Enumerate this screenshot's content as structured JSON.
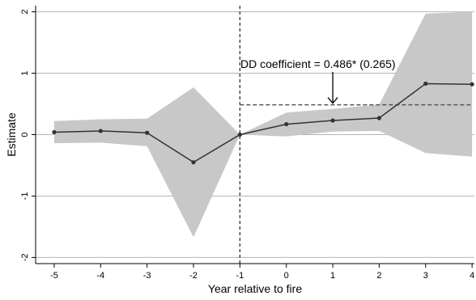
{
  "chart_data": {
    "type": "line",
    "title": "",
    "xlabel": "Year relative to fire",
    "ylabel": "Estimate",
    "xlim": [
      -5.4,
      4.05
    ],
    "ylim": [
      -2.1,
      2.1
    ],
    "x_ticks": [
      -5,
      -4,
      -3,
      -2,
      -1,
      0,
      1,
      2,
      3,
      4
    ],
    "y_ticks": [
      -2,
      -1,
      0,
      1,
      2
    ],
    "grid": "horizontal",
    "series": [
      {
        "x": [
          -5,
          -4,
          -3,
          -2,
          -1,
          0,
          1,
          2,
          3,
          4
        ],
        "values": [
          0.04,
          0.06,
          0.03,
          -0.45,
          0.0,
          0.17,
          0.23,
          0.27,
          0.83,
          0.82
        ],
        "ci_lower": [
          -0.14,
          -0.13,
          -0.19,
          -1.67,
          0.0,
          -0.03,
          0.05,
          0.06,
          -0.3,
          -0.36
        ],
        "ci_upper": [
          0.22,
          0.25,
          0.26,
          0.77,
          0.0,
          0.36,
          0.42,
          0.49,
          1.97,
          2.0
        ],
        "color": "#333333",
        "band_color": "#c8c8c8"
      }
    ],
    "reference_lines": {
      "vertical_x": -1,
      "dd_estimate": {
        "value": 0.486,
        "x_start": -1,
        "x_end": 4
      }
    },
    "annotation": {
      "text": "DD coefficient = 0.486* (0.265)",
      "arrow_x": 1,
      "points_to": 0.486
    }
  }
}
